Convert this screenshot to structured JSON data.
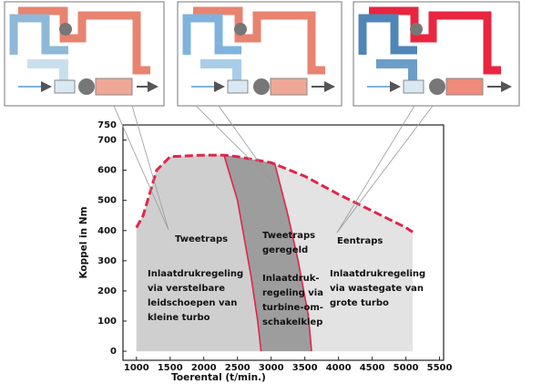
{
  "chart_data": {
    "type": "line",
    "x_label": "Toerental (t/min.)",
    "y_label": "Koppel in Nm",
    "xlim": [
      800,
      5560
    ],
    "ylim": [
      -30,
      750
    ],
    "xticks": [
      1000,
      1500,
      2000,
      2500,
      3000,
      3500,
      4000,
      4500,
      5000,
      5500
    ],
    "yticks": [
      0,
      100,
      200,
      300,
      400,
      500,
      600,
      700,
      750
    ],
    "series": [
      {
        "color": "#e0254a",
        "dashed": true,
        "x": [
          1000,
          1100,
          1300,
          1500,
          2000,
          2300,
          2500,
          3000,
          3500,
          4000,
          4500,
          5000,
          5100
        ],
        "values": [
          410,
          450,
          600,
          645,
          650,
          650,
          645,
          625,
          580,
          520,
          465,
          410,
          395
        ]
      },
      {
        "color": "#e0254a",
        "dashed": false,
        "x": [
          2300,
          2500,
          2700,
          2800,
          2850
        ],
        "values": [
          650,
          500,
          250,
          100,
          0
        ]
      },
      {
        "color": "#e0254a",
        "dashed": false,
        "x": [
          3050,
          3250,
          3400,
          3550,
          3600
        ],
        "values": [
          625,
          450,
          300,
          120,
          0
        ]
      }
    ],
    "annotations": [
      [
        "Tweetraps"
      ],
      [
        "Inlaatdrukregeling",
        "via verstelbare",
        "leidschoepen van",
        "kleine turbo"
      ],
      [
        "Tweetraps",
        "geregeld"
      ],
      [
        "Inlaatdruk-",
        "regeling via",
        "turbine-om-",
        "schakelklep"
      ],
      [
        "Eentraps"
      ],
      [
        "Inlaatdrukregeling",
        "via wastegate van",
        "grote turbo"
      ]
    ]
  }
}
